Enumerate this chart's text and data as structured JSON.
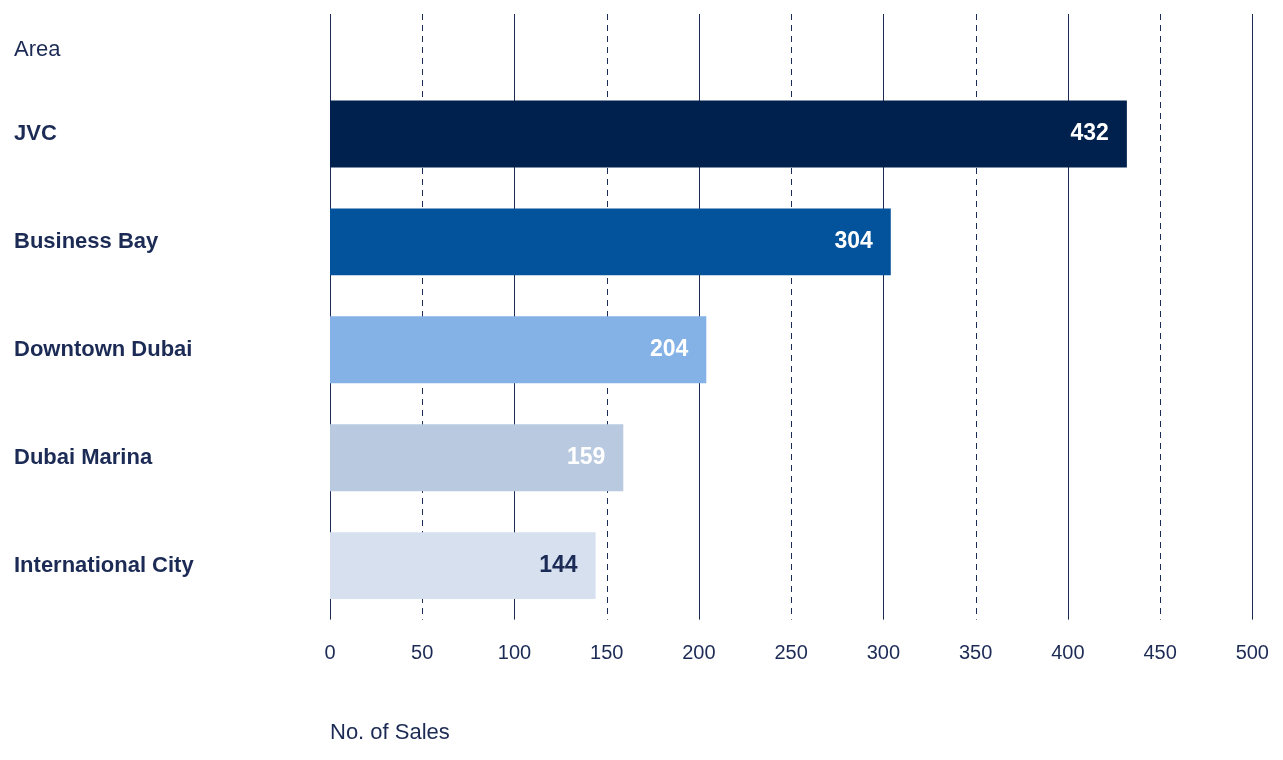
{
  "chart_data": {
    "type": "bar",
    "orientation": "horizontal",
    "ylabel": "Area",
    "xlabel": "No. of Sales",
    "categories": [
      "JVC",
      "Business Bay",
      "Downtown Dubai",
      "Dubai Marina",
      "International City"
    ],
    "values": [
      432,
      304,
      204,
      159,
      144
    ],
    "colors": [
      "#00214d",
      "#02529c",
      "#84b1e6",
      "#b9cae0",
      "#d6e0ef"
    ],
    "xlim": [
      0,
      500
    ],
    "xticks": [
      0,
      50,
      100,
      150,
      200,
      250,
      300,
      350,
      400,
      450,
      500
    ],
    "grid": "x",
    "data_labels": true
  }
}
